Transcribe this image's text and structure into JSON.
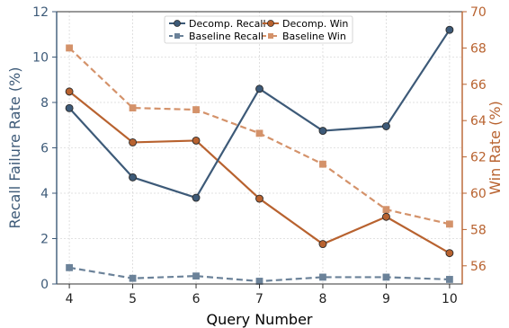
{
  "chart_data": {
    "type": "line",
    "x": [
      4,
      5,
      6,
      7,
      8,
      9,
      10
    ],
    "xlabel": "Query Number",
    "xlim": [
      3.8,
      10.2
    ],
    "left_axis": {
      "label": "Recall Failure Rate (%)",
      "ylim": [
        0,
        12
      ],
      "ticks": [
        0,
        2,
        4,
        6,
        8,
        10,
        12
      ],
      "color": "#3d5a78"
    },
    "right_axis": {
      "label": "Win Rate (%)",
      "ylim": [
        55,
        70
      ],
      "ticks": [
        56,
        58,
        60,
        62,
        64,
        66,
        68,
        70
      ],
      "color": "#b8622f"
    },
    "grid": true,
    "legend_position": "top-center",
    "series": [
      {
        "name": "Decomp. Recall",
        "axis": "left",
        "style": "solid",
        "marker": "circle",
        "color": "#3d5a78",
        "values": [
          7.75,
          4.7,
          3.8,
          8.6,
          6.75,
          6.95,
          11.2
        ]
      },
      {
        "name": "Decomp. Win",
        "axis": "right",
        "style": "solid",
        "marker": "circle",
        "color": "#b8622f",
        "values": [
          65.6,
          62.8,
          62.9,
          59.7,
          57.2,
          58.7,
          56.7
        ]
      },
      {
        "name": "Baseline Recall",
        "axis": "left",
        "style": "dashed",
        "marker": "square",
        "color": "#6b8299",
        "values": [
          0.72,
          0.25,
          0.35,
          0.12,
          0.3,
          0.3,
          0.2
        ]
      },
      {
        "name": "Baseline Win",
        "axis": "right",
        "style": "dashed",
        "marker": "square",
        "color": "#d4926a",
        "values": [
          68.0,
          64.7,
          64.6,
          63.3,
          61.6,
          59.1,
          58.3
        ]
      }
    ]
  }
}
